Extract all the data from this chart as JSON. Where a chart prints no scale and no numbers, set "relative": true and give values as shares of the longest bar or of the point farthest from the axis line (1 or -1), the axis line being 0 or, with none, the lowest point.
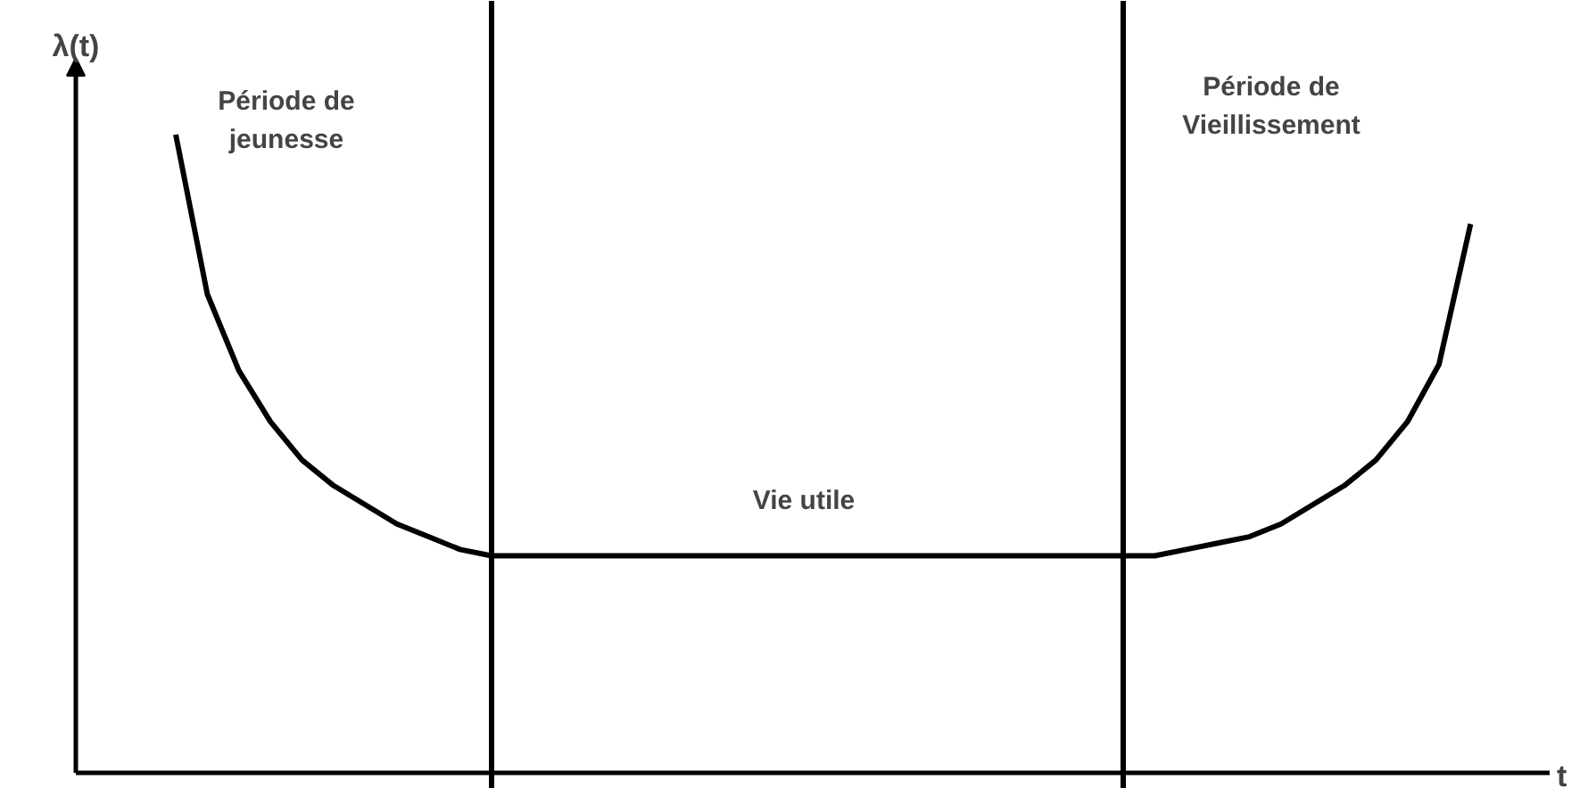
{
  "chart_data": {
    "type": "line",
    "relative": true,
    "xlabel": "t",
    "ylabel": "λ(t)",
    "categories": [
      null,
      null,
      null,
      null,
      null,
      null,
      null,
      null,
      null,
      null,
      null,
      null,
      null,
      null,
      null,
      null,
      null,
      null,
      null,
      null,
      null,
      null,
      null,
      null,
      null,
      null,
      null,
      null,
      null,
      null,
      null,
      null,
      null,
      null,
      null,
      null,
      null,
      null,
      null,
      null,
      null,
      null
    ],
    "series": [
      {
        "color": "#000000",
        "values": [
          1.0,
          0.75,
          0.63,
          0.55,
          0.49,
          0.45,
          0.42,
          0.39,
          0.37,
          0.35,
          0.34,
          0.34,
          0.34,
          0.34,
          0.34,
          0.34,
          0.34,
          0.34,
          0.34,
          0.34,
          0.34,
          0.34,
          0.34,
          0.34,
          0.34,
          0.34,
          0.34,
          0.34,
          0.34,
          0.34,
          0.34,
          0.34,
          0.35,
          0.36,
          0.37,
          0.39,
          0.42,
          0.45,
          0.49,
          0.55,
          0.64,
          0.86
        ]
      }
    ],
    "annotations": [
      "Période de jeunesse",
      "Vie utile",
      "Période de Vieillissement"
    ],
    "line_style": "solid"
  }
}
